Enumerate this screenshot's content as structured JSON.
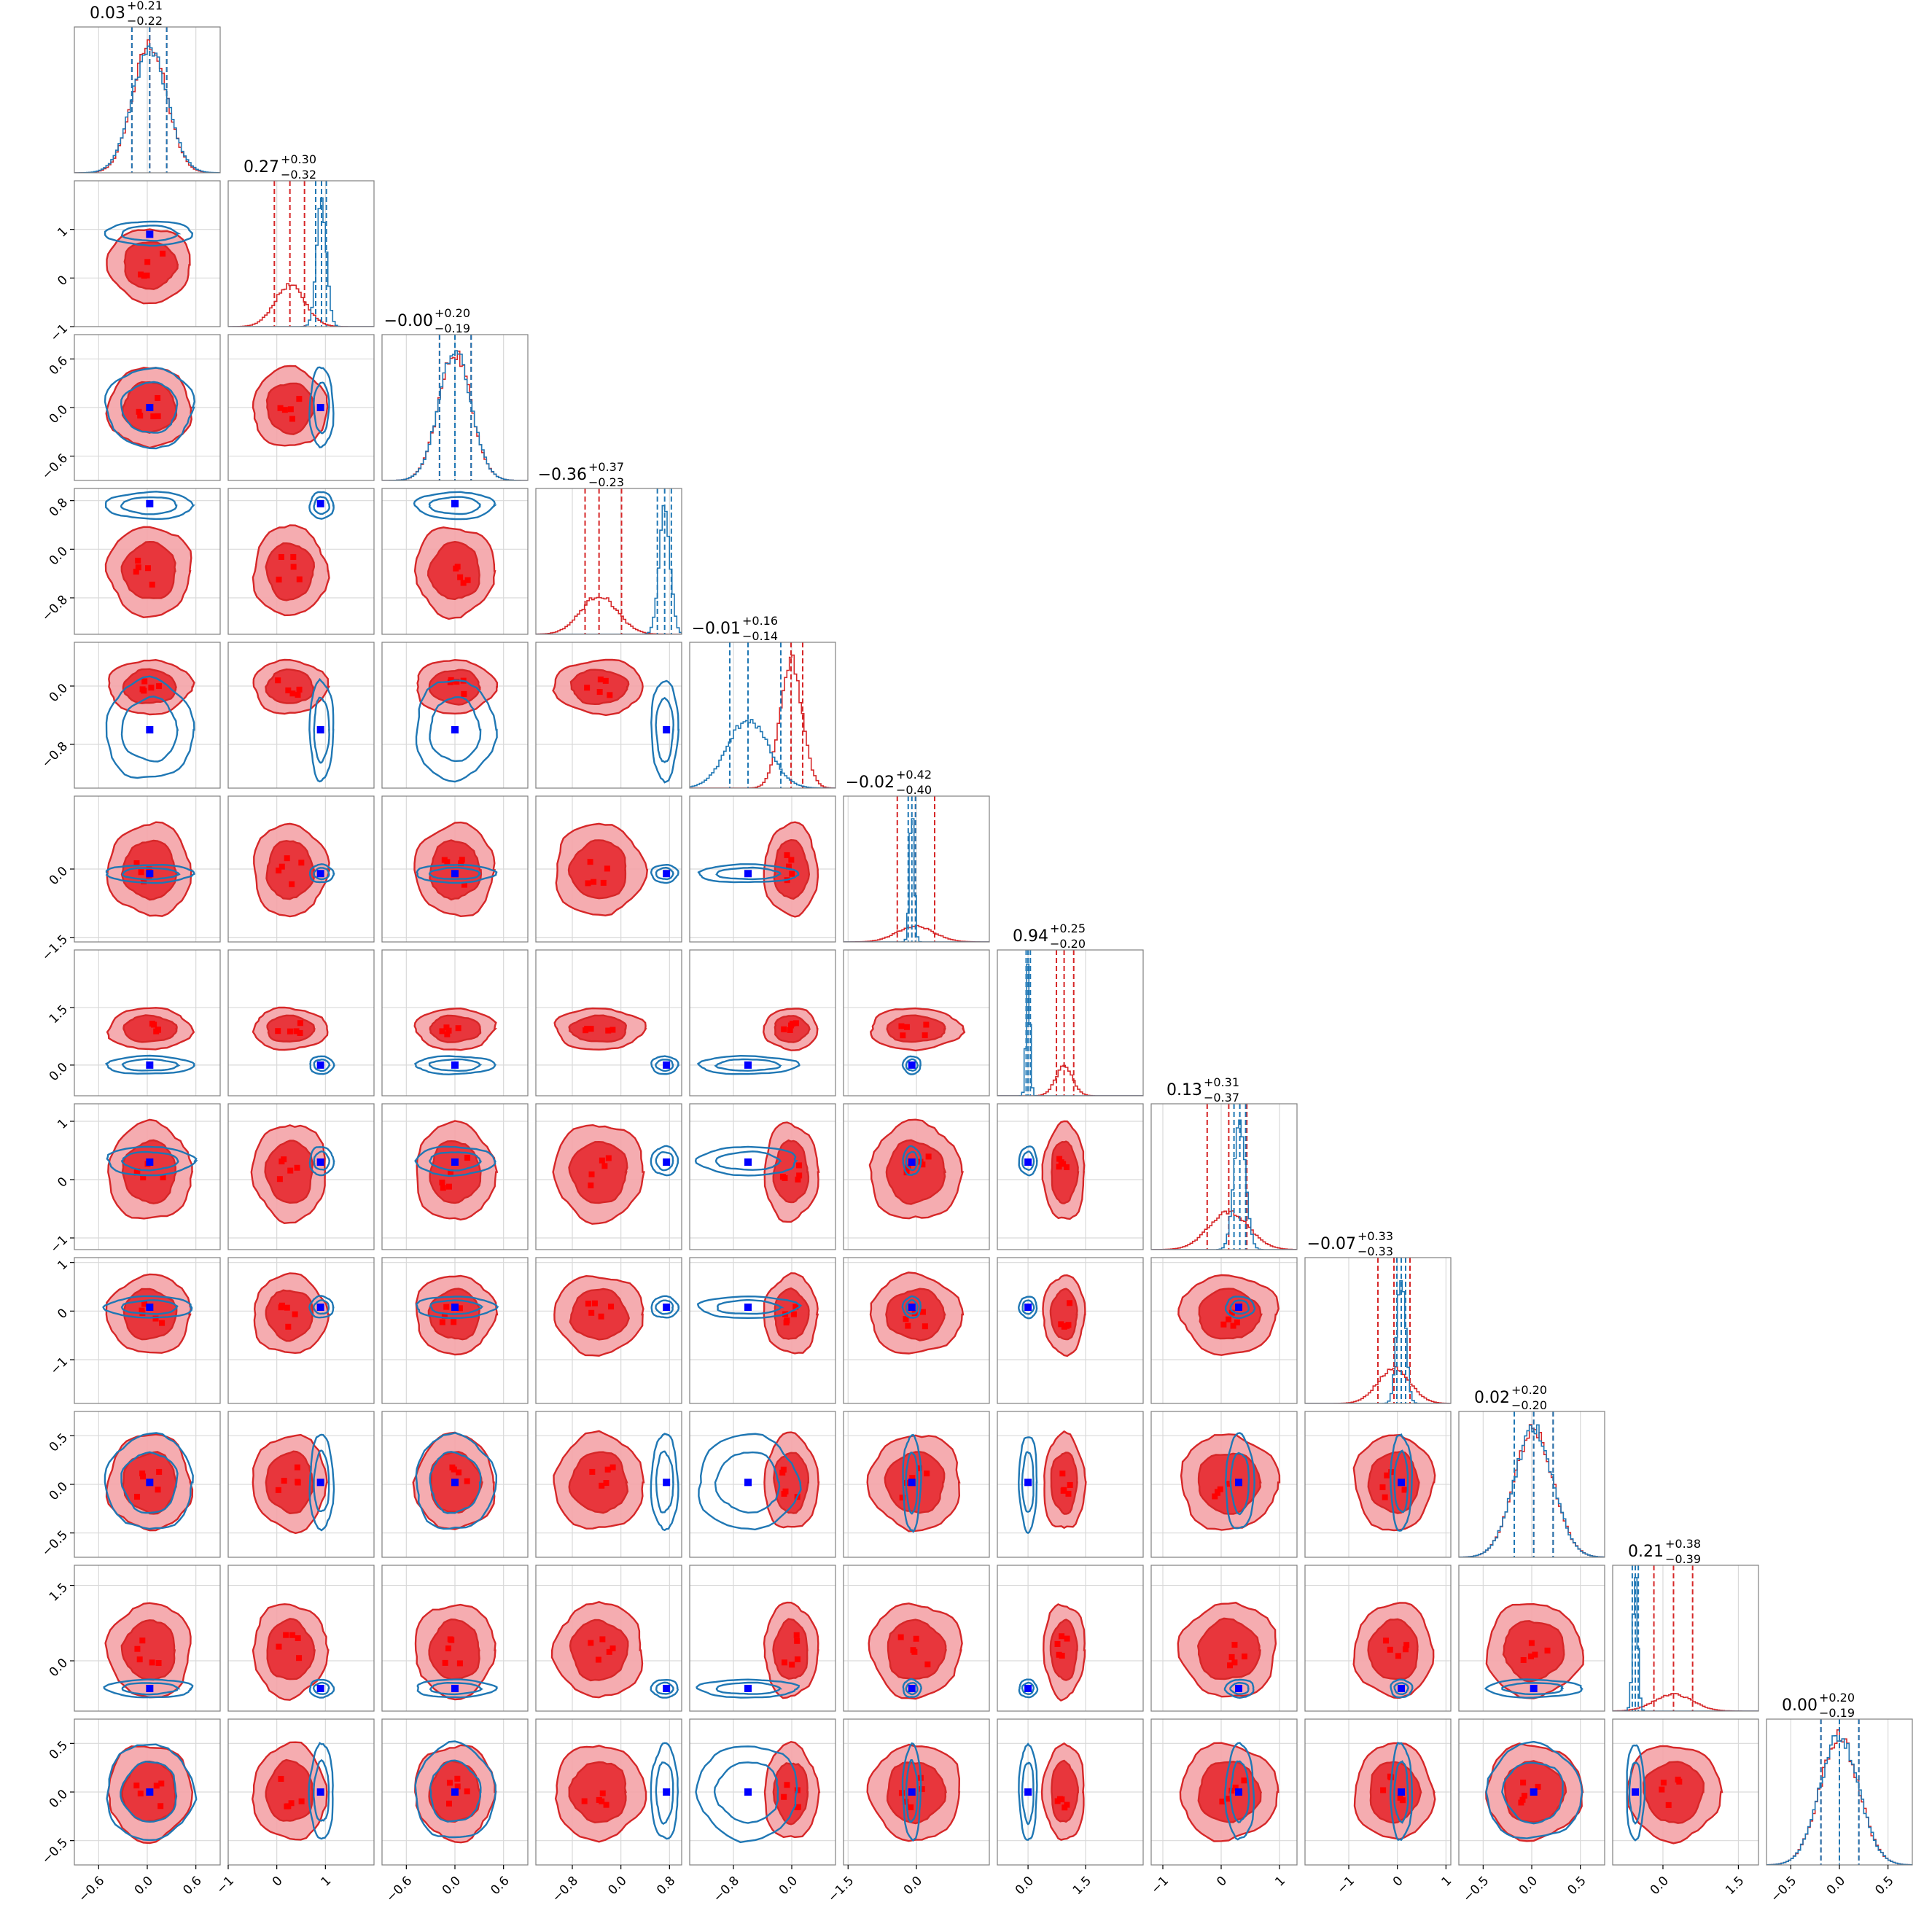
{
  "chart_data": {
    "type": "corner",
    "n_params": 12,
    "series": [
      {
        "name": "",
        "color": "#d62728",
        "style": "filled-contours"
      },
      {
        "name": "",
        "color": "#1f77b4",
        "style": "line-contours"
      }
    ],
    "truth_marker_color": "#0000ff",
    "titles": [
      {
        "value": "0.03",
        "plus": "+0.21",
        "minus": "−0.22"
      },
      {
        "value": "0.27",
        "plus": "+0.30",
        "minus": "−0.32"
      },
      {
        "value": "−0.00",
        "plus": "+0.20",
        "minus": "−0.19"
      },
      {
        "value": "−0.36",
        "plus": "+0.37",
        "minus": "−0.23"
      },
      {
        "value": "−0.01",
        "plus": "+0.16",
        "minus": "−0.14"
      },
      {
        "value": "−0.02",
        "plus": "+0.42",
        "minus": "−0.40"
      },
      {
        "value": "0.94",
        "plus": "+0.25",
        "minus": "−0.20"
      },
      {
        "value": "0.13",
        "plus": "+0.31",
        "minus": "−0.37"
      },
      {
        "value": "−0.07",
        "plus": "+0.33",
        "minus": "−0.33"
      },
      {
        "value": "0.02",
        "plus": "+0.20",
        "minus": "−0.20"
      },
      {
        "value": "0.21",
        "plus": "+0.38",
        "minus": "−0.39"
      },
      {
        "value": "0.00",
        "plus": "+0.20",
        "minus": "−0.19"
      }
    ],
    "params": [
      {
        "range": [
          -0.9,
          0.9
        ],
        "ticks": [
          -0.6,
          0.0,
          0.6
        ],
        "tick_labels": [
          "−0.6",
          "0.0",
          "0.6"
        ],
        "red": {
          "mean": 0.03,
          "sd": 0.21
        },
        "blue": {
          "mean": 0.03,
          "sd": 0.22
        },
        "red_q": [
          -0.19,
          0.03,
          0.24
        ],
        "blue_q": [
          -0.19,
          0.03,
          0.24
        ],
        "truth": 0.03
      },
      {
        "range": [
          -1.0,
          2.0
        ],
        "ticks": [
          -1,
          0,
          1
        ],
        "tick_labels": [
          "−1",
          "0",
          "1"
        ],
        "red": {
          "mean": 0.27,
          "sd": 0.31
        },
        "blue": {
          "mean": 0.92,
          "sd": 0.1
        },
        "red_q": [
          -0.05,
          0.27,
          0.57
        ],
        "blue_q": [
          0.8,
          0.92,
          1.02
        ],
        "truth": 0.9
      },
      {
        "range": [
          -0.9,
          0.9
        ],
        "ticks": [
          -0.6,
          0.0,
          0.6
        ],
        "tick_labels": [
          "−0.6",
          "0.0",
          "0.6"
        ],
        "red": {
          "mean": 0.0,
          "sd": 0.2
        },
        "blue": {
          "mean": 0.0,
          "sd": 0.2
        },
        "red_q": [
          -0.19,
          0.0,
          0.2
        ],
        "blue_q": [
          -0.19,
          0.0,
          0.2
        ],
        "truth": 0.0
      },
      {
        "range": [
          -1.4,
          1.0
        ],
        "ticks": [
          -0.8,
          0.0,
          0.8
        ],
        "tick_labels": [
          "−0.8",
          "0.0",
          "0.8"
        ],
        "red": {
          "mean": -0.36,
          "sd": 0.3
        },
        "blue": {
          "mean": 0.72,
          "sd": 0.09
        },
        "red_q": [
          -0.59,
          -0.36,
          0.01
        ],
        "blue_q": [
          0.6,
          0.72,
          0.83
        ],
        "truth": 0.75
      },
      {
        "range": [
          -1.4,
          0.6
        ],
        "ticks": [
          -0.8,
          0.0
        ],
        "tick_labels": [
          "−0.8",
          "0.0"
        ],
        "red": {
          "mean": -0.01,
          "sd": 0.15
        },
        "blue": {
          "mean": -0.6,
          "sd": 0.28
        },
        "red_q": [
          -0.15,
          -0.01,
          0.15
        ],
        "blue_q": [
          -0.85,
          -0.6,
          -0.15
        ],
        "truth": -0.6
      },
      {
        "range": [
          -1.6,
          1.6
        ],
        "ticks": [
          -1.5,
          0.0
        ],
        "tick_labels": [
          "−1.5",
          "0.0"
        ],
        "red": {
          "mean": -0.02,
          "sd": 0.41
        },
        "blue": {
          "mean": -0.1,
          "sd": 0.05
        },
        "red_q": [
          -0.42,
          -0.02,
          0.4
        ],
        "blue_q": [
          -0.18,
          -0.1,
          -0.02
        ],
        "truth": -0.1
      },
      {
        "range": [
          -0.8,
          3.0
        ],
        "ticks": [
          0.0,
          1.5
        ],
        "tick_labels": [
          "0.0",
          "1.5"
        ],
        "red": {
          "mean": 0.94,
          "sd": 0.22
        },
        "blue": {
          "mean": 0.0,
          "sd": 0.05
        },
        "red_q": [
          0.74,
          0.94,
          1.19
        ],
        "blue_q": [
          -0.05,
          0.0,
          0.06
        ],
        "truth": 0.0
      },
      {
        "range": [
          -1.2,
          1.3
        ],
        "ticks": [
          -1,
          0,
          1
        ],
        "tick_labels": [
          "−1",
          "0",
          "1"
        ],
        "red": {
          "mean": 0.13,
          "sd": 0.34
        },
        "blue": {
          "mean": 0.32,
          "sd": 0.1
        },
        "red_q": [
          -0.24,
          0.13,
          0.44
        ],
        "blue_q": [
          0.22,
          0.32,
          0.42
        ],
        "truth": 0.3
      },
      {
        "range": [
          -1.9,
          1.1
        ],
        "ticks": [
          -1,
          0,
          1
        ],
        "tick_labels": [
          "−1",
          "0",
          "1"
        ],
        "red": {
          "mean": -0.07,
          "sd": 0.33
        },
        "blue": {
          "mean": 0.08,
          "sd": 0.09
        },
        "red_q": [
          -0.4,
          -0.07,
          0.26
        ],
        "blue_q": [
          -0.01,
          0.08,
          0.17
        ],
        "truth": 0.08
      },
      {
        "range": [
          -0.75,
          0.75
        ],
        "ticks": [
          -0.5,
          0.0,
          0.5
        ],
        "tick_labels": [
          "−0.5",
          "0.0",
          "0.5"
        ],
        "red": {
          "mean": 0.02,
          "sd": 0.2
        },
        "blue": {
          "mean": 0.02,
          "sd": 0.2
        },
        "red_q": [
          -0.18,
          0.02,
          0.22
        ],
        "blue_q": [
          -0.18,
          0.02,
          0.22
        ],
        "truth": 0.02
      },
      {
        "range": [
          -1.0,
          1.9
        ],
        "ticks": [
          0.0,
          1.5
        ],
        "tick_labels": [
          "0.0",
          "1.5"
        ],
        "red": {
          "mean": 0.21,
          "sd": 0.38
        },
        "blue": {
          "mean": -0.55,
          "sd": 0.05
        },
        "red_q": [
          -0.18,
          0.21,
          0.59
        ],
        "blue_q": [
          -0.61,
          -0.55,
          -0.49
        ],
        "truth": -0.55
      },
      {
        "range": [
          -0.75,
          0.75
        ],
        "ticks": [
          -0.5,
          0.0,
          0.5
        ],
        "tick_labels": [
          "−0.5",
          "0.0",
          "0.5"
        ],
        "red": {
          "mean": 0.0,
          "sd": 0.2
        },
        "blue": {
          "mean": 0.0,
          "sd": 0.2
        },
        "red_q": [
          -0.19,
          0.0,
          0.2
        ],
        "blue_q": [
          -0.19,
          0.0,
          0.2
        ],
        "truth": 0.0
      }
    ]
  }
}
